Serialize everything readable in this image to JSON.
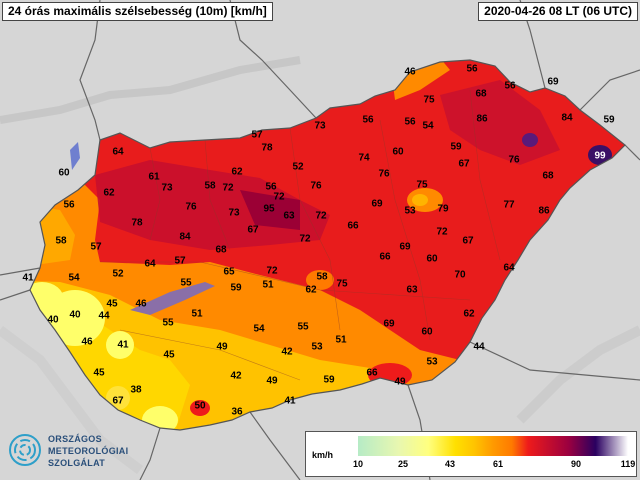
{
  "header": {
    "title": "24 órás maximális szélsebesség (10m) [km/h]",
    "datetime": "2020-04-26 08 LT (06 UTC)"
  },
  "legend": {
    "unit": "km/h",
    "ticks": [
      "10",
      "25",
      "43",
      "61",
      "90",
      "119"
    ],
    "colors": [
      "#b6ebc6",
      "#ffff80",
      "#ffc400",
      "#ff7a00",
      "#ee1b1b",
      "#9b0040",
      "#2a0060",
      "#ffffff"
    ]
  },
  "logo": {
    "line1": "ORSZÁGOS",
    "line2": "METEOROLÓGIAI",
    "line3": "SZOLGÁLAT"
  },
  "colors": {
    "background": "#d8d8d8",
    "border": "#666666"
  },
  "stations": [
    {
      "v": "46"
    },
    {
      "v": "56"
    },
    {
      "v": "69"
    },
    {
      "v": "75"
    },
    {
      "v": "68"
    },
    {
      "v": "56"
    },
    {
      "v": "73"
    },
    {
      "v": "56"
    },
    {
      "v": "56"
    },
    {
      "v": "54"
    },
    {
      "v": "86"
    },
    {
      "v": "84"
    },
    {
      "v": "59"
    },
    {
      "v": "57"
    },
    {
      "v": "78"
    },
    {
      "v": "60"
    },
    {
      "v": "59"
    },
    {
      "v": "99"
    },
    {
      "v": "64"
    },
    {
      "v": "52"
    },
    {
      "v": "74"
    },
    {
      "v": "76"
    },
    {
      "v": "67"
    },
    {
      "v": "60"
    },
    {
      "v": "62"
    },
    {
      "v": "61"
    },
    {
      "v": "73"
    },
    {
      "v": "58"
    },
    {
      "v": "72"
    },
    {
      "v": "56"
    },
    {
      "v": "76"
    },
    {
      "v": "76"
    },
    {
      "v": "75"
    },
    {
      "v": "68"
    },
    {
      "v": "62"
    },
    {
      "v": "72"
    },
    {
      "v": "56"
    },
    {
      "v": "76"
    },
    {
      "v": "95"
    },
    {
      "v": "63"
    },
    {
      "v": "72"
    },
    {
      "v": "69"
    },
    {
      "v": "53"
    },
    {
      "v": "79"
    },
    {
      "v": "77"
    },
    {
      "v": "86"
    },
    {
      "v": "73"
    },
    {
      "v": "78"
    },
    {
      "v": "67"
    },
    {
      "v": "66"
    },
    {
      "v": "72"
    },
    {
      "v": "58"
    },
    {
      "v": "84"
    },
    {
      "v": "68"
    },
    {
      "v": "72"
    },
    {
      "v": "69"
    },
    {
      "v": "67"
    },
    {
      "v": "57"
    },
    {
      "v": "64"
    },
    {
      "v": "57"
    },
    {
      "v": "66"
    },
    {
      "v": "60"
    },
    {
      "v": "41"
    },
    {
      "v": "54"
    },
    {
      "v": "52"
    },
    {
      "v": "65"
    },
    {
      "v": "72"
    },
    {
      "v": "58"
    },
    {
      "v": "70"
    },
    {
      "v": "64"
    },
    {
      "v": "55"
    },
    {
      "v": "59"
    },
    {
      "v": "51"
    },
    {
      "v": "62"
    },
    {
      "v": "75"
    },
    {
      "v": "63"
    },
    {
      "v": "45"
    },
    {
      "v": "46"
    },
    {
      "v": "40"
    },
    {
      "v": "40"
    },
    {
      "v": "44"
    },
    {
      "v": "51"
    },
    {
      "v": "55"
    },
    {
      "v": "62"
    },
    {
      "v": "54"
    },
    {
      "v": "55"
    },
    {
      "v": "69"
    },
    {
      "v": "60"
    },
    {
      "v": "46"
    },
    {
      "v": "41"
    },
    {
      "v": "49"
    },
    {
      "v": "53"
    },
    {
      "v": "51"
    },
    {
      "v": "44"
    },
    {
      "v": "45"
    },
    {
      "v": "42"
    },
    {
      "v": "45"
    },
    {
      "v": "42"
    },
    {
      "v": "49"
    },
    {
      "v": "59"
    },
    {
      "v": "66"
    },
    {
      "v": "49"
    },
    {
      "v": "53"
    },
    {
      "v": "38"
    },
    {
      "v": "67"
    },
    {
      "v": "50"
    },
    {
      "v": "41"
    },
    {
      "v": "36"
    }
  ]
}
